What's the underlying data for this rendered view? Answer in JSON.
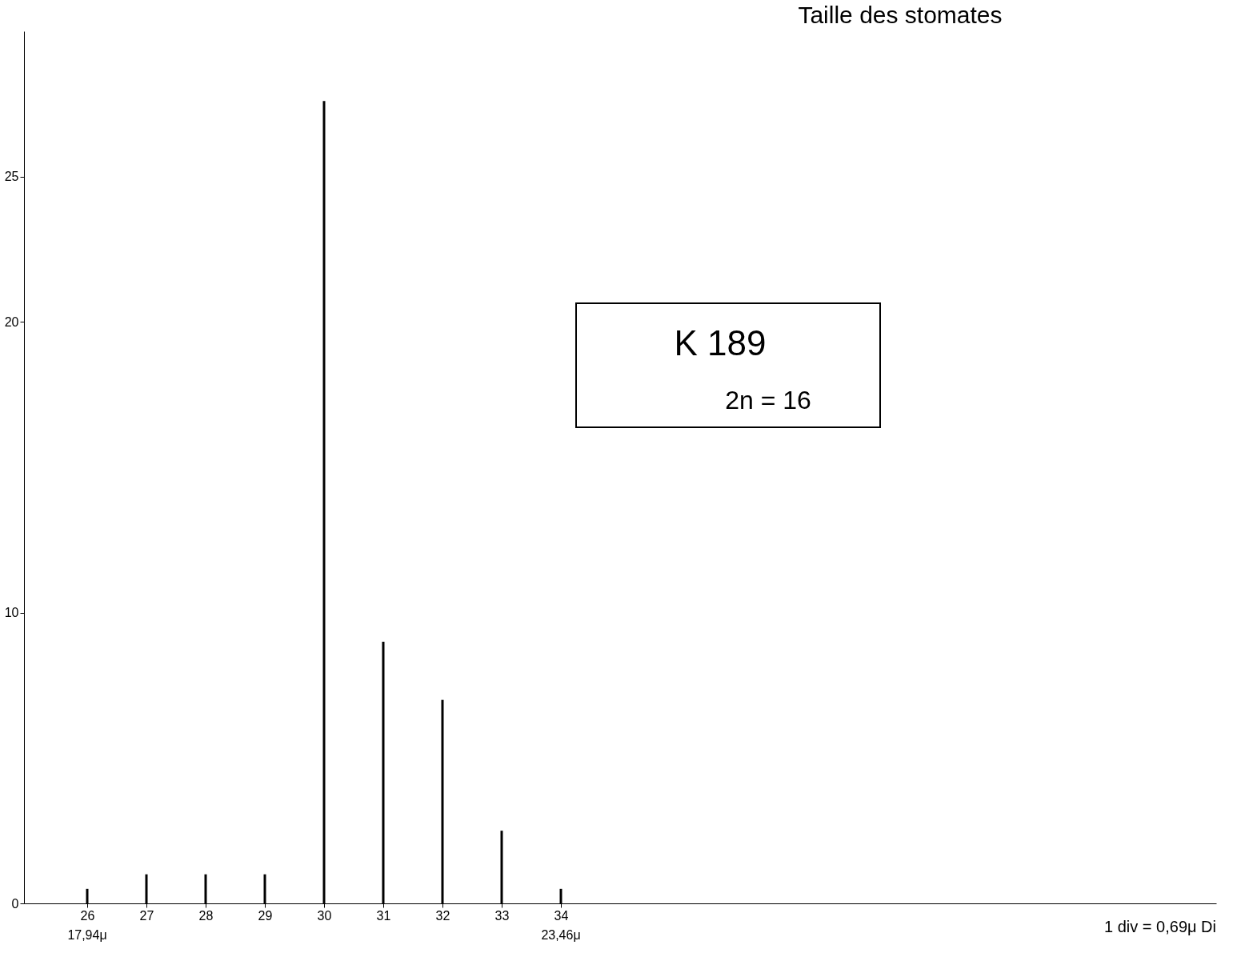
{
  "chart_data": {
    "type": "bar",
    "title": "Taille des stomates",
    "x": [
      26,
      27,
      28,
      29,
      30,
      31,
      32,
      33,
      34
    ],
    "values": [
      0.5,
      1,
      1,
      1,
      27.6,
      9,
      7,
      2.5,
      0.5
    ],
    "color": "#000000",
    "xlim": [
      25,
      45
    ],
    "xticks": [
      26,
      27,
      28,
      29,
      30,
      31,
      32,
      33,
      34
    ],
    "ylim": [
      0,
      30
    ],
    "yticks": [
      0,
      10,
      20,
      25
    ],
    "grid": false,
    "annotations": [
      {
        "text": "17,94μ",
        "x": 26,
        "y": 0
      },
      {
        "text": "23,46μ",
        "x": 34,
        "y": 0
      },
      "K 189",
      "2n = 16",
      "1 div = 0,69μ Di"
    ]
  }
}
